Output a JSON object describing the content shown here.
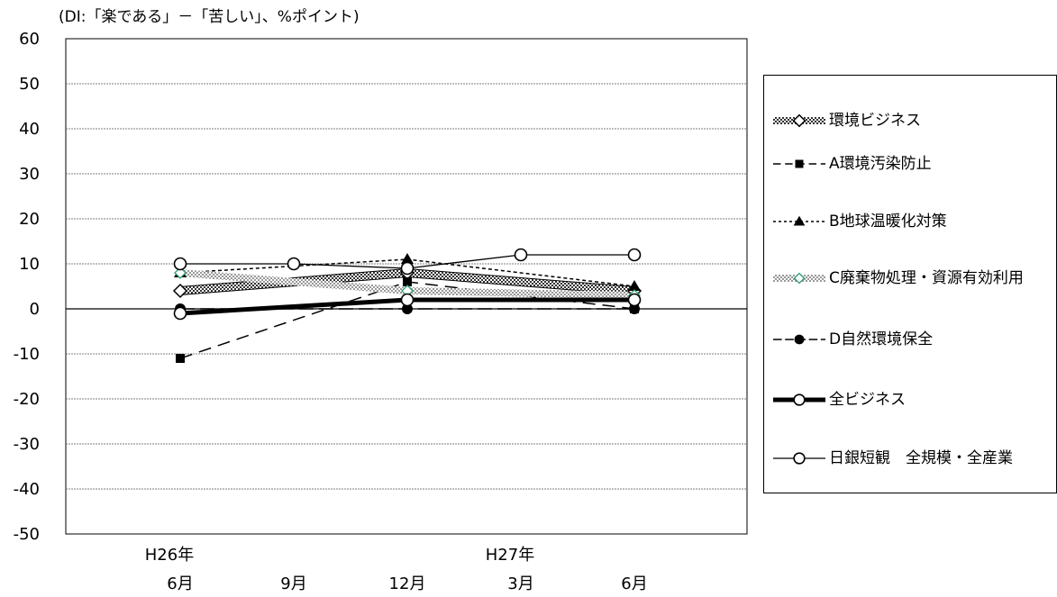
{
  "unit_note": "(DI:「楽である」－「苦しい」、%ポイント)",
  "chart_data": {
    "type": "line",
    "ylim": [
      -50,
      60
    ],
    "y_ticks": [
      "60",
      "50",
      "40",
      "30",
      "20",
      "10",
      "0",
      "-10",
      "-20",
      "-30",
      "-40",
      "-50"
    ],
    "grid": true,
    "legend_position": "right",
    "x_year_labels": [
      "H26年",
      "",
      "",
      "H27年",
      ""
    ],
    "categories": [
      "6月",
      "9月",
      "12月",
      "3月",
      "6月"
    ],
    "series": [
      {
        "name": "環境ビジネス",
        "values": [
          4,
          null,
          8,
          null,
          4
        ],
        "style": "thick-hatched",
        "marker": "diamond-open",
        "color": "#555555"
      },
      {
        "name": "A環境汚染防止",
        "values": [
          -11,
          null,
          6,
          null,
          0
        ],
        "style": "long-dash",
        "marker": "square-filled",
        "color": "#000000"
      },
      {
        "name": "B地球温暖化対策",
        "values": [
          8,
          null,
          11,
          null,
          5
        ],
        "style": "short-dash",
        "marker": "triangle-filled",
        "color": "#000000"
      },
      {
        "name": "C廃棄物処理・資源有効利用",
        "values": [
          8,
          null,
          4,
          null,
          3
        ],
        "style": "thick-light",
        "marker": "diamond-green",
        "color": "#aaaaaa"
      },
      {
        "name": "D自然環境保全",
        "values": [
          0,
          null,
          0,
          null,
          0
        ],
        "style": "dash-dot",
        "marker": "circle-filled",
        "color": "#000000"
      },
      {
        "name": "全ビジネス",
        "values": [
          -1,
          null,
          2,
          null,
          2
        ],
        "style": "thick-solid",
        "marker": "circle-open",
        "color": "#000000"
      },
      {
        "name": "日銀短観　全規模・全産業",
        "values": [
          10,
          10,
          9,
          12,
          12
        ],
        "style": "thin-solid",
        "marker": "circle-open",
        "color": "#000000"
      }
    ]
  },
  "legend": {
    "items": [
      {
        "label": "環境ビジネス"
      },
      {
        "label": "A環境汚染防止"
      },
      {
        "label": "B地球温暖化対策"
      },
      {
        "label": "C廃棄物処理・資源有効利用"
      },
      {
        "label": "D自然環境保全"
      },
      {
        "label": "全ビジネス"
      },
      {
        "label": "日銀短観　全規模・全産業"
      }
    ]
  }
}
